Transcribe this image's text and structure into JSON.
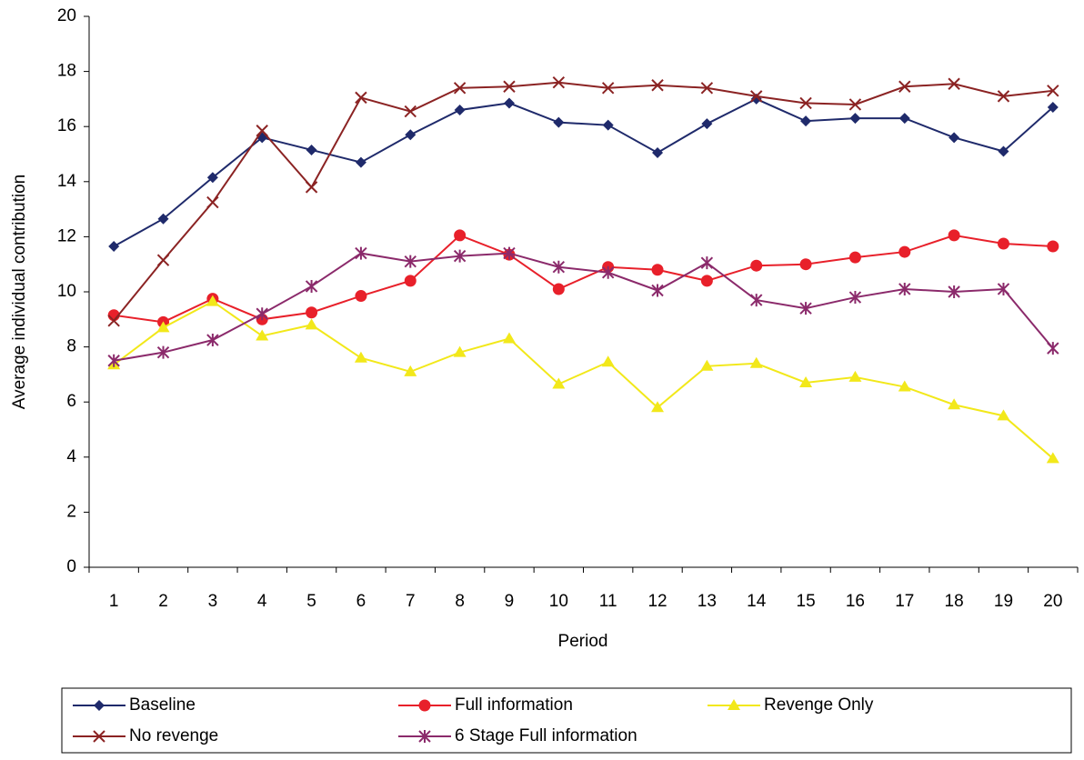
{
  "chart_data": {
    "type": "line",
    "x_label": "Period",
    "y_label": "Average individual contribution",
    "categories": [
      "1",
      "2",
      "3",
      "4",
      "5",
      "6",
      "7",
      "8",
      "9",
      "10",
      "11",
      "12",
      "13",
      "14",
      "15",
      "16",
      "17",
      "18",
      "19",
      "20"
    ],
    "ylim": [
      0,
      20
    ],
    "yticks": [
      0,
      2,
      4,
      6,
      8,
      10,
      12,
      14,
      16,
      18,
      20
    ],
    "legend": "bottom",
    "series": [
      {
        "name": "Baseline",
        "color": "#1f2a6b",
        "marker": "diamond",
        "values": [
          11.65,
          12.65,
          14.15,
          15.6,
          15.15,
          14.7,
          15.7,
          16.6,
          16.85,
          16.15,
          16.05,
          15.05,
          16.1,
          17.0,
          16.2,
          16.3,
          16.3,
          15.6,
          15.1,
          16.7
        ]
      },
      {
        "name": "Full information",
        "color": "#e8202a",
        "marker": "circle",
        "values": [
          9.15,
          8.9,
          9.75,
          9.0,
          9.25,
          9.85,
          10.4,
          12.05,
          11.35,
          10.1,
          10.9,
          10.8,
          10.4,
          10.95,
          11.0,
          11.25,
          11.45,
          12.05,
          11.75,
          11.65
        ]
      },
      {
        "name": "Revenge Only",
        "color": "#f2e81a",
        "marker": "triangle",
        "values": [
          7.35,
          8.7,
          9.65,
          8.4,
          8.8,
          7.6,
          7.1,
          7.8,
          8.3,
          6.65,
          7.45,
          5.8,
          7.3,
          7.4,
          6.7,
          6.9,
          6.55,
          5.9,
          5.5,
          3.95
        ]
      },
      {
        "name": "No revenge",
        "color": "#8b2323",
        "marker": "x",
        "values": [
          8.95,
          11.15,
          13.25,
          15.85,
          13.8,
          17.05,
          16.55,
          17.4,
          17.45,
          17.6,
          17.4,
          17.5,
          17.4,
          17.1,
          16.85,
          16.8,
          17.45,
          17.55,
          17.1,
          17.3
        ]
      },
      {
        "name": "6 Stage Full information",
        "color": "#8b2a6b",
        "marker": "star",
        "values": [
          7.5,
          7.8,
          8.25,
          9.2,
          10.2,
          11.4,
          11.1,
          11.3,
          11.4,
          10.9,
          10.7,
          10.05,
          11.05,
          9.7,
          9.4,
          9.8,
          10.1,
          10.0,
          10.1,
          7.95
        ]
      }
    ]
  }
}
